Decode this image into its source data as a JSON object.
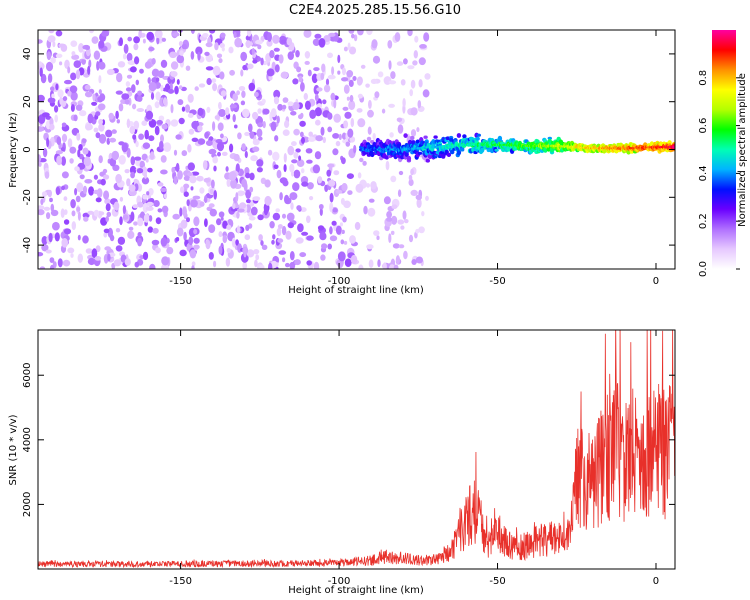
{
  "chart_data": [
    {
      "type": "heatmap",
      "title": "C2E4.2025.285.15.56.G10",
      "xlabel": "Height of straight line (km)",
      "ylabel": "Frequency (Hz)",
      "xlim": [
        -195,
        6
      ],
      "ylim": [
        -50,
        50
      ],
      "x_ticks": [
        -150,
        -100,
        -50,
        0
      ],
      "y_ticks": [
        -40,
        -20,
        0,
        20,
        40
      ],
      "colorbar": {
        "label": "Normalized spectral amplitude",
        "range": [
          0,
          1
        ],
        "ticks": [
          0.0,
          0.2,
          0.4,
          0.6,
          0.8
        ],
        "colors": [
          "#ffffff",
          "#e6c8ff",
          "#b070ff",
          "#6a00ff",
          "#0010ff",
          "#00b4ff",
          "#00ffb4",
          "#00ff00",
          "#b4ff00",
          "#ffff00",
          "#ff9000",
          "#ff0000",
          "#ff00a0"
        ]
      },
      "description_series": [
        {
          "name": "noise region",
          "x_range": [
            -195,
            -72
          ],
          "freq_range": [
            -50,
            50
          ],
          "amplitude": [
            0.05,
            0.2
          ]
        },
        {
          "name": "signal band center",
          "x": [
            -93,
            -80,
            -70,
            -60,
            -50,
            -40,
            -30,
            -20,
            -10,
            0,
            6
          ],
          "freq": [
            0,
            0,
            1,
            2,
            2,
            1.5,
            1.5,
            0.5,
            0.5,
            1,
            1
          ],
          "amplitude": [
            0.35,
            0.4,
            0.45,
            0.5,
            0.55,
            0.6,
            0.7,
            0.8,
            0.85,
            0.9,
            0.95
          ]
        }
      ]
    },
    {
      "type": "line",
      "xlabel": "Height of straight line (km)",
      "ylabel": "SNR (10 * v/v)",
      "xlim": [
        -195,
        6
      ],
      "ylim": [
        0,
        7400
      ],
      "x_ticks": [
        -150,
        -100,
        -50,
        0
      ],
      "y_ticks": [
        2000,
        4000,
        6000
      ],
      "series": [
        {
          "name": "SNR",
          "color": "#e8302a",
          "x": [
            -195,
            -180,
            -160,
            -140,
            -120,
            -100,
            -90,
            -85,
            -80,
            -75,
            -70,
            -65,
            -62,
            -60,
            -58,
            -56,
            -54,
            -52,
            -50,
            -48,
            -45,
            -40,
            -35,
            -30,
            -27,
            -25,
            -22,
            -20,
            -15,
            -12,
            -10,
            -5,
            0,
            3,
            6
          ],
          "y": [
            200,
            200,
            200,
            220,
            220,
            250,
            350,
            500,
            450,
            350,
            400,
            900,
            1500,
            2500,
            3000,
            2500,
            1400,
            1200,
            2000,
            1500,
            1000,
            1200,
            1500,
            1500,
            1800,
            4500,
            4200,
            4500,
            5500,
            5800,
            5200,
            5000,
            6000,
            5800,
            6300
          ]
        }
      ]
    }
  ]
}
